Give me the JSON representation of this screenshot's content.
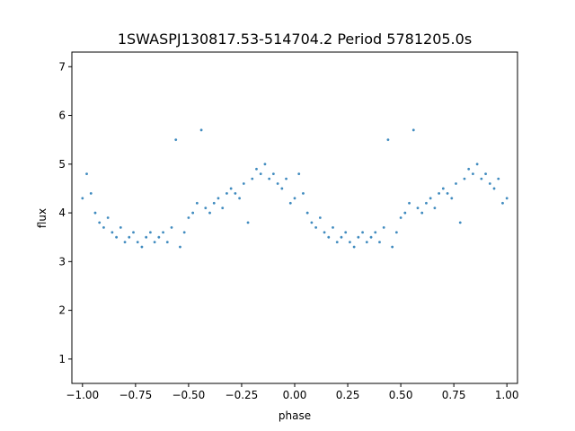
{
  "chart_data": {
    "type": "scatter",
    "title": "1SWASPJ130817.53-514704.2 Period 5781205.0s",
    "xlabel": "phase",
    "ylabel": "flux",
    "xlim": [
      -1.05,
      1.05
    ],
    "ylim": [
      0.5,
      7.3
    ],
    "xticks": [
      -1.0,
      -0.75,
      -0.5,
      -0.25,
      0.0,
      0.25,
      0.5,
      0.75,
      1.0
    ],
    "xtick_labels": [
      "−1.00",
      "−0.75",
      "−0.50",
      "−0.25",
      "0.00",
      "0.25",
      "0.50",
      "0.75",
      "1.00"
    ],
    "yticks": [
      1,
      2,
      3,
      4,
      5,
      6,
      7
    ],
    "ytick_labels": [
      "1",
      "2",
      "3",
      "4",
      "5",
      "6",
      "7"
    ],
    "grid": false,
    "marker_color": "#1f77b4",
    "points": [
      [
        -1.0,
        4.3
      ],
      [
        -0.98,
        4.8
      ],
      [
        -0.96,
        4.4
      ],
      [
        -0.94,
        4.0
      ],
      [
        -0.92,
        3.8
      ],
      [
        -0.9,
        3.7
      ],
      [
        -0.88,
        3.9
      ],
      [
        -0.86,
        3.6
      ],
      [
        -0.84,
        3.5
      ],
      [
        -0.82,
        3.7
      ],
      [
        -0.8,
        3.4
      ],
      [
        -0.78,
        3.5
      ],
      [
        -0.76,
        3.6
      ],
      [
        -0.74,
        3.4
      ],
      [
        -0.72,
        3.3
      ],
      [
        -0.7,
        3.5
      ],
      [
        -0.68,
        3.6
      ],
      [
        -0.66,
        3.4
      ],
      [
        -0.64,
        3.5
      ],
      [
        -0.62,
        3.6
      ],
      [
        -0.6,
        3.4
      ],
      [
        -0.58,
        3.7
      ],
      [
        -0.56,
        5.5
      ],
      [
        -0.54,
        3.3
      ],
      [
        -0.52,
        3.6
      ],
      [
        -0.5,
        3.9
      ],
      [
        -0.48,
        4.0
      ],
      [
        -0.46,
        4.2
      ],
      [
        -0.44,
        5.7
      ],
      [
        -0.42,
        4.1
      ],
      [
        -0.4,
        4.0
      ],
      [
        -0.38,
        4.2
      ],
      [
        -0.36,
        4.3
      ],
      [
        -0.34,
        4.1
      ],
      [
        -0.32,
        4.4
      ],
      [
        -0.3,
        4.5
      ],
      [
        -0.28,
        4.4
      ],
      [
        -0.26,
        4.3
      ],
      [
        -0.24,
        4.6
      ],
      [
        -0.22,
        3.8
      ],
      [
        -0.2,
        4.7
      ],
      [
        -0.18,
        4.9
      ],
      [
        -0.16,
        4.8
      ],
      [
        -0.14,
        5.0
      ],
      [
        -0.12,
        4.7
      ],
      [
        -0.1,
        4.8
      ],
      [
        -0.08,
        4.6
      ],
      [
        -0.06,
        4.5
      ],
      [
        -0.04,
        4.7
      ],
      [
        -0.02,
        4.2
      ],
      [
        0.0,
        4.3
      ],
      [
        0.02,
        4.8
      ],
      [
        0.04,
        4.4
      ],
      [
        0.06,
        4.0
      ],
      [
        0.08,
        3.8
      ],
      [
        0.1,
        3.7
      ],
      [
        0.12,
        3.9
      ],
      [
        0.14,
        3.6
      ],
      [
        0.16,
        3.5
      ],
      [
        0.18,
        3.7
      ],
      [
        0.2,
        3.4
      ],
      [
        0.22,
        3.5
      ],
      [
        0.24,
        3.6
      ],
      [
        0.26,
        3.4
      ],
      [
        0.28,
        3.3
      ],
      [
        0.3,
        3.5
      ],
      [
        0.32,
        3.6
      ],
      [
        0.34,
        3.4
      ],
      [
        0.36,
        3.5
      ],
      [
        0.38,
        3.6
      ],
      [
        0.4,
        3.4
      ],
      [
        0.42,
        3.7
      ],
      [
        0.44,
        5.5
      ],
      [
        0.46,
        3.3
      ],
      [
        0.48,
        3.6
      ],
      [
        0.5,
        3.9
      ],
      [
        0.52,
        4.0
      ],
      [
        0.54,
        4.2
      ],
      [
        0.56,
        5.7
      ],
      [
        0.58,
        4.1
      ],
      [
        0.6,
        4.0
      ],
      [
        0.62,
        4.2
      ],
      [
        0.64,
        4.3
      ],
      [
        0.66,
        4.1
      ],
      [
        0.68,
        4.4
      ],
      [
        0.7,
        4.5
      ],
      [
        0.72,
        4.4
      ],
      [
        0.74,
        4.3
      ],
      [
        0.76,
        4.6
      ],
      [
        0.78,
        3.8
      ],
      [
        0.8,
        4.7
      ],
      [
        0.82,
        4.9
      ],
      [
        0.84,
        4.8
      ],
      [
        0.86,
        5.0
      ],
      [
        0.88,
        4.7
      ],
      [
        0.9,
        4.8
      ],
      [
        0.92,
        4.6
      ],
      [
        0.94,
        4.5
      ],
      [
        0.96,
        4.7
      ],
      [
        0.98,
        4.2
      ],
      [
        1.0,
        4.3
      ]
    ]
  }
}
